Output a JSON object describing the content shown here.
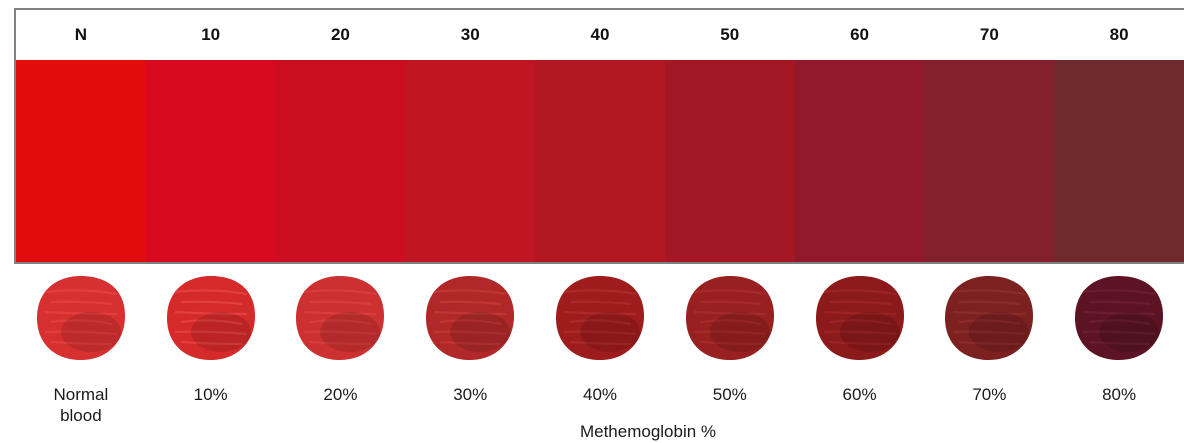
{
  "chart_data": {
    "type": "table",
    "categories": [
      "N",
      "10",
      "20",
      "30",
      "40",
      "50",
      "60",
      "70",
      "80"
    ],
    "sample_labels": [
      "Normal\nblood",
      "10%",
      "20%",
      "30%",
      "40%",
      "50%",
      "60%",
      "70%",
      "80%"
    ],
    "xlabel": "Methemoglobin %",
    "swatch_colors": [
      "#e30c0c",
      "#d70a20",
      "#cc0e22",
      "#c01624",
      "#b31822",
      "#a41826",
      "#90192c",
      "#82212c",
      "#6e2a2c"
    ],
    "sample_colors": [
      "#d63030",
      "#d52a2a",
      "#cc3030",
      "#b02828",
      "#9e1c1c",
      "#982020",
      "#8c1a1a",
      "#7c2020",
      "#5c1424"
    ],
    "sample_highlight_colors": [
      "#f04848",
      "#f05050",
      "#e04848",
      "#d04040",
      "#b83434",
      "#b03434",
      "#a82c2c",
      "#983434",
      "#742434"
    ]
  }
}
